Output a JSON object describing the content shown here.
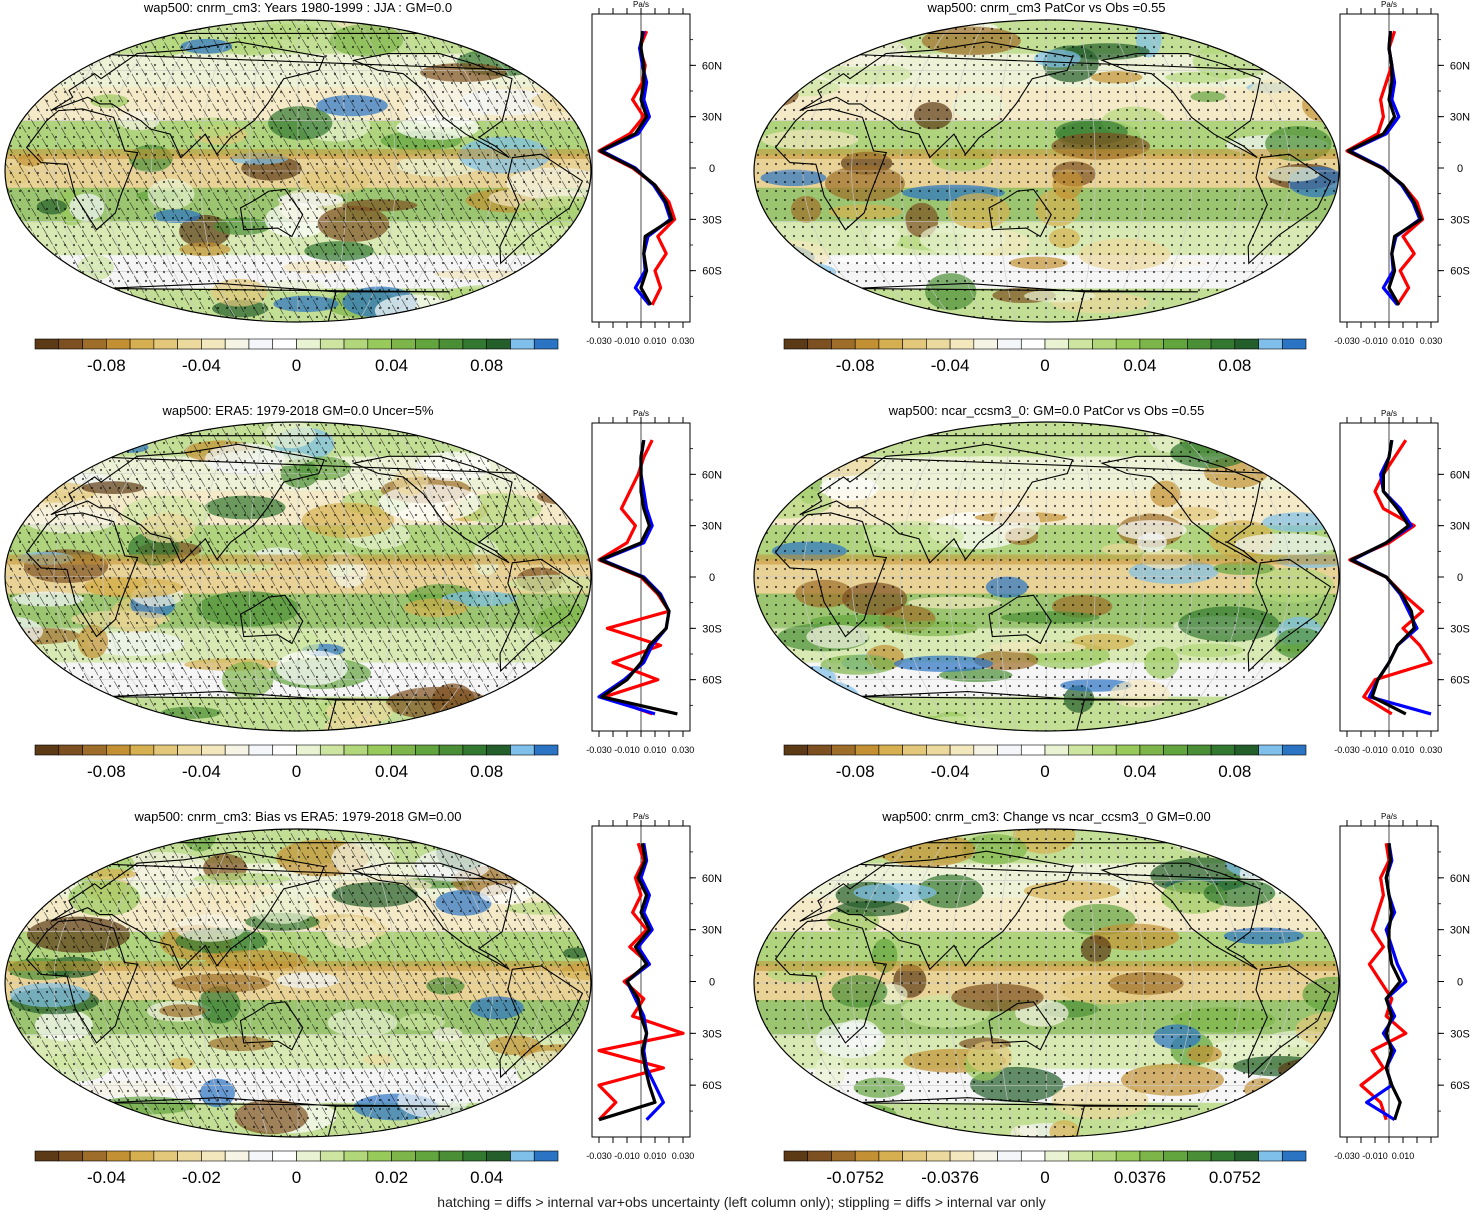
{
  "palette": [
    "#5c3a16",
    "#7d5021",
    "#9e6d2a",
    "#c39133",
    "#d6b050",
    "#e3c77b",
    "#ecd99d",
    "#f3e7bd",
    "#f6f4e4",
    "#f4f6fa",
    "#ffffff",
    "#e9f2d2",
    "#cde5a1",
    "#b2d77a",
    "#98c95b",
    "#7db54a",
    "#62a43e",
    "#4a8f36",
    "#327830",
    "#235e2b",
    "#7fc0ea",
    "#2b74c4"
  ],
  "footer": "hatching = diffs > internal var+obs uncertainty (left column only); stippling = diffs > internal var only",
  "chart_data": [
    {
      "type": "map",
      "title": "wap500: cnrm_cm3: Years 1980-1999 : JJA : GM=0.0",
      "colorbar_ticks": [
        "-0.08",
        "-0.04",
        "0",
        "0.04",
        "0.08"
      ],
      "hatched": true,
      "stippled": true,
      "profile": {
        "unit": "Pa/s",
        "x_ticks": [
          "-0.030",
          "-0.010",
          "0.010",
          "0.030"
        ],
        "y_ticks": [
          "60N",
          "30N",
          "0",
          "30S",
          "60S"
        ],
        "lat": [
          80,
          70,
          60,
          50,
          40,
          30,
          20,
          10,
          0,
          -10,
          -20,
          -30,
          -40,
          -50,
          -60,
          -70,
          -80
        ],
        "series": [
          {
            "color": "#ff0000",
            "values": [
              0.004,
              -0.001,
              0.003,
              0.001,
              -0.006,
              0.002,
              -0.008,
              -0.03,
              -0.006,
              0.01,
              0.02,
              0.024,
              0.012,
              0.018,
              0.01,
              0.014,
              0.008
            ]
          },
          {
            "color": "#0000ff",
            "values": [
              0.002,
              -0.001,
              0.001,
              0.004,
              0.002,
              0.006,
              -0.002,
              -0.028,
              -0.004,
              0.009,
              0.017,
              0.021,
              0.005,
              0.002,
              0.003,
              -0.004,
              0.006
            ]
          },
          {
            "color": "#000000",
            "values": [
              0.001,
              0.0,
              0.002,
              0.002,
              0.0,
              0.004,
              -0.004,
              -0.029,
              -0.005,
              0.01,
              0.018,
              0.022,
              0.003,
              0.002,
              0.004,
              0.0,
              0.007
            ]
          }
        ]
      }
    },
    {
      "type": "map",
      "title": "wap500: cnrm_cm3 PatCor vs Obs =0.55",
      "colorbar_ticks": [
        "-0.08",
        "-0.04",
        "0",
        "0.04",
        "0.08"
      ],
      "hatched": false,
      "stippled": true,
      "profile": {
        "unit": "Pa/s",
        "x_ticks": [
          "-0.030",
          "-0.010",
          "0.010",
          "0.030"
        ],
        "y_ticks": [
          "60N",
          "30N",
          "0",
          "30S",
          "60S"
        ],
        "lat": [
          80,
          70,
          60,
          50,
          40,
          30,
          20,
          10,
          0,
          -10,
          -20,
          -30,
          -40,
          -50,
          -60,
          -70,
          -80
        ],
        "series": [
          {
            "color": "#ff0000",
            "values": [
              0.004,
              0.0,
              0.002,
              -0.002,
              -0.006,
              -0.004,
              -0.008,
              -0.03,
              -0.005,
              0.01,
              0.02,
              0.024,
              0.01,
              0.018,
              0.008,
              0.014,
              0.006
            ]
          },
          {
            "color": "#0000ff",
            "values": [
              0.001,
              0.0,
              0.002,
              0.004,
              0.002,
              0.007,
              -0.002,
              -0.028,
              -0.004,
              0.009,
              0.017,
              0.022,
              0.005,
              0.002,
              0.003,
              -0.004,
              0.006
            ]
          },
          {
            "color": "#000000",
            "values": [
              0.001,
              0.0,
              0.002,
              0.002,
              0.0,
              0.004,
              -0.004,
              -0.029,
              -0.005,
              0.01,
              0.018,
              0.023,
              0.004,
              0.002,
              0.004,
              0.0,
              0.007
            ]
          }
        ]
      }
    },
    {
      "type": "map",
      "title": "wap500: ERA5: 1979-2018 GM=0.0 Uncer=5%",
      "colorbar_ticks": [
        "-0.08",
        "-0.04",
        "0",
        "0.04",
        "0.08"
      ],
      "hatched": true,
      "stippled": true,
      "profile": {
        "unit": "Pa/s",
        "x_ticks": [
          "-0.030",
          "-0.010",
          "0.010",
          "0.030"
        ],
        "y_ticks": [
          "60N",
          "30N",
          "0",
          "30S",
          "60S"
        ],
        "lat": [
          80,
          70,
          60,
          50,
          40,
          30,
          20,
          10,
          0,
          -10,
          -20,
          -30,
          -40,
          -50,
          -60,
          -70,
          -80
        ],
        "series": [
          {
            "color": "#ff0000",
            "values": [
              0.008,
              0.002,
              -0.002,
              -0.008,
              -0.014,
              -0.004,
              -0.01,
              -0.03,
              0.0,
              0.012,
              0.02,
              -0.024,
              0.014,
              -0.02,
              0.012,
              -0.026,
              0.008
            ]
          },
          {
            "color": "#0000ff",
            "values": [
              0.002,
              0.0,
              0.0,
              0.002,
              0.004,
              0.008,
              0.002,
              -0.028,
              0.002,
              0.014,
              0.02,
              0.018,
              0.008,
              0.002,
              -0.012,
              -0.03,
              0.01
            ]
          },
          {
            "color": "#000000",
            "values": [
              0.002,
              0.0,
              0.0,
              0.0,
              0.002,
              0.006,
              0.0,
              -0.029,
              0.001,
              0.013,
              0.02,
              0.018,
              0.006,
              0.0,
              -0.01,
              -0.028,
              0.026
            ]
          }
        ]
      }
    },
    {
      "type": "map",
      "title": "wap500: ncar_ccsm3_0: GM=0.0 PatCor vs Obs =0.55",
      "colorbar_ticks": [
        "-0.08",
        "-0.04",
        "0",
        "0.04",
        "0.08"
      ],
      "hatched": false,
      "stippled": true,
      "profile": {
        "unit": "Pa/s",
        "x_ticks": [
          "-0.030",
          "-0.010",
          "0.010",
          "0.030"
        ],
        "y_ticks": [
          "60N",
          "30N",
          "0",
          "30S",
          "60S"
        ],
        "lat": [
          80,
          70,
          60,
          50,
          40,
          30,
          20,
          10,
          0,
          -10,
          -20,
          -30,
          -40,
          -50,
          -60,
          -70,
          -80
        ],
        "series": [
          {
            "color": "#ff0000",
            "values": [
              0.012,
              0.004,
              -0.004,
              -0.01,
              -0.004,
              0.018,
              0.0,
              -0.028,
              -0.002,
              0.01,
              0.024,
              0.01,
              0.022,
              0.03,
              -0.01,
              -0.018,
              0.002
            ]
          },
          {
            "color": "#0000ff",
            "values": [
              0.002,
              0.0,
              -0.006,
              -0.004,
              0.008,
              0.016,
              -0.002,
              -0.026,
              -0.002,
              0.008,
              0.014,
              0.02,
              0.006,
              0.0,
              -0.008,
              -0.014,
              0.03
            ]
          },
          {
            "color": "#000000",
            "values": [
              0.002,
              0.0,
              -0.004,
              -0.004,
              0.006,
              0.014,
              -0.002,
              -0.027,
              -0.002,
              0.009,
              0.016,
              0.018,
              0.006,
              0.0,
              -0.008,
              -0.012,
              0.012
            ]
          }
        ]
      }
    },
    {
      "type": "map",
      "title": "wap500: cnrm_cm3: Bias vs ERA5: 1979-2018 GM=0.00",
      "colorbar_ticks": [
        "-0.04",
        "-0.02",
        "0",
        "0.02",
        "0.04"
      ],
      "hatched": true,
      "stippled": true,
      "profile": {
        "unit": "Pa/s",
        "x_ticks": [
          "-0.030",
          "-0.010",
          "0.010",
          "0.030"
        ],
        "y_ticks": [
          "60N",
          "30N",
          "0",
          "30S",
          "60S"
        ],
        "lat": [
          80,
          70,
          60,
          50,
          40,
          30,
          20,
          10,
          0,
          -10,
          -20,
          -30,
          -40,
          -50,
          -60,
          -70,
          -80
        ],
        "series": [
          {
            "color": "#ff0000",
            "values": [
              -0.002,
              0.002,
              -0.004,
              0.0,
              -0.006,
              0.004,
              -0.008,
              0.006,
              -0.012,
              0.002,
              -0.006,
              0.03,
              -0.03,
              0.016,
              -0.03,
              -0.018,
              -0.03
            ]
          },
          {
            "color": "#0000ff",
            "values": [
              0.002,
              0.004,
              0.0,
              0.006,
              0.002,
              0.008,
              -0.002,
              0.006,
              -0.01,
              -0.004,
              0.002,
              0.004,
              0.002,
              0.004,
              0.01,
              0.016,
              0.004
            ]
          },
          {
            "color": "#000000",
            "values": [
              0.001,
              0.003,
              -0.002,
              0.004,
              0.0,
              0.006,
              -0.004,
              0.004,
              -0.01,
              -0.002,
              0.0,
              0.004,
              0.001,
              0.003,
              0.006,
              0.01,
              -0.03
            ]
          }
        ]
      }
    },
    {
      "type": "map",
      "title": "wap500: cnrm_cm3: Change vs ncar_ccsm3_0 GM=0.00",
      "colorbar_ticks": [
        "-0.0752",
        "-0.0376",
        "0",
        "0.0376",
        "0.0752"
      ],
      "hatched": false,
      "stippled": true,
      "profile": {
        "unit": "Pa/s",
        "x_ticks": [
          "-0.030",
          "-0.010",
          "0.010"
        ],
        "y_ticks": [
          "60N",
          "30N",
          "0",
          "30S",
          "60S"
        ],
        "lat": [
          80,
          70,
          60,
          50,
          40,
          30,
          20,
          10,
          0,
          -10,
          -20,
          -30,
          -40,
          -50,
          -60,
          -70,
          -80
        ],
        "series": [
          {
            "color": "#ff0000",
            "values": [
              -0.002,
              0.0,
              -0.006,
              -0.004,
              -0.008,
              -0.012,
              -0.004,
              -0.014,
              -0.006,
              0.002,
              -0.002,
              0.012,
              -0.012,
              -0.004,
              -0.02,
              -0.006,
              -0.002
            ]
          },
          {
            "color": "#0000ff",
            "values": [
              0.0,
              0.002,
              -0.002,
              0.0,
              0.004,
              -0.002,
              0.002,
              0.006,
              0.012,
              -0.002,
              0.004,
              -0.004,
              0.004,
              -0.002,
              0.002,
              -0.016,
              0.004
            ]
          },
          {
            "color": "#000000",
            "values": [
              0.0,
              0.001,
              -0.002,
              0.0,
              0.002,
              0.0,
              0.0,
              0.002,
              0.008,
              -0.002,
              0.002,
              -0.002,
              0.002,
              -0.002,
              0.002,
              0.008,
              0.004
            ]
          }
        ]
      }
    }
  ]
}
